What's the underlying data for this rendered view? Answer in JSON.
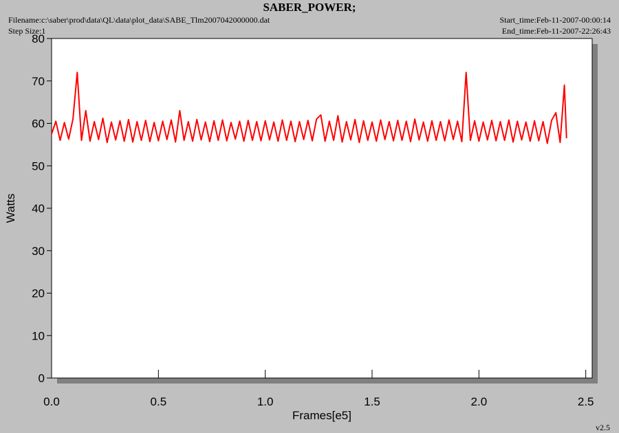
{
  "chart_data": {
    "type": "line",
    "title": "SABER_POWER;",
    "filename": "Filename:c:\\saber\\prod\\data\\QL\\data\\plot_data\\SABE_Tlm2007042000000.dat",
    "step_size": "Step Size:1",
    "start_time": "Start_time:Feb-11-2007-00:00:14",
    "end_time": "End_time:Feb-11-2007-22:26:43",
    "version": "v2.5",
    "x_label": "Frames[e5]",
    "y_label": "Watts",
    "xlim": [
      0,
      2.53
    ],
    "ylim": [
      0,
      80
    ],
    "xticks": [
      {
        "value": 0,
        "label": "0.0"
      },
      0.5,
      {
        "value": 1,
        "label": "1.0"
      },
      1.5,
      {
        "value": 2,
        "label": "2.0"
      },
      2.5
    ],
    "yticks": [
      0,
      10,
      20,
      30,
      40,
      50,
      60,
      70,
      80
    ],
    "x": [
      0,
      0.02,
      0.04,
      0.06,
      0.08,
      0.1,
      0.12,
      0.14,
      0.16,
      0.18,
      0.2,
      0.22,
      0.24,
      0.26,
      0.28,
      0.3,
      0.32,
      0.34,
      0.36,
      0.38,
      0.4,
      0.42,
      0.44,
      0.46,
      0.48,
      0.5,
      0.52,
      0.54,
      0.56,
      0.58,
      0.6,
      0.62,
      0.64,
      0.66,
      0.68,
      0.7,
      0.72,
      0.74,
      0.76,
      0.78,
      0.8,
      0.82,
      0.84,
      0.86,
      0.88,
      0.9,
      0.92,
      0.94,
      0.96,
      0.98,
      1,
      1.02,
      1.04,
      1.06,
      1.08,
      1.1,
      1.12,
      1.14,
      1.16,
      1.18,
      1.2,
      1.22,
      1.24,
      1.26,
      1.28,
      1.3,
      1.32,
      1.34,
      1.36,
      1.38,
      1.4,
      1.42,
      1.44,
      1.46,
      1.48,
      1.5,
      1.52,
      1.54,
      1.56,
      1.58,
      1.6,
      1.62,
      1.64,
      1.66,
      1.68,
      1.7,
      1.72,
      1.74,
      1.76,
      1.78,
      1.8,
      1.82,
      1.84,
      1.86,
      1.88,
      1.9,
      1.92,
      1.94,
      1.96,
      1.98,
      2,
      2.02,
      2.04,
      2.06,
      2.08,
      2.1,
      2.12,
      2.14,
      2.16,
      2.18,
      2.2,
      2.22,
      2.24,
      2.26,
      2.28,
      2.3,
      2.32,
      2.34,
      2.36,
      2.38,
      2.4,
      2.41
    ],
    "series": [
      {
        "name": "SABER_POWER",
        "color": "#ff0000",
        "values": [
          57.5,
          60.5,
          56.0,
          60.2,
          56.3,
          61.0,
          72,
          56.0,
          63,
          55.8,
          60.4,
          56.2,
          61.2,
          55.5,
          60.3,
          56.1,
          60.6,
          55.8,
          60.9,
          55.6,
          60.4,
          56.0,
          60.7,
          55.7,
          60.2,
          55.9,
          60.5,
          56.2,
          60.8,
          55.6,
          63.0,
          56.0,
          60.4,
          55.8,
          60.9,
          56.1,
          60.3,
          55.7,
          60.6,
          56.0,
          60.8,
          55.9,
          60.2,
          56.3,
          60.5,
          55.8,
          60.7,
          56.0,
          60.4,
          55.9,
          60.6,
          56.1,
          60.3,
          55.8,
          60.8,
          56.0,
          60.5,
          55.7,
          60.4,
          56.2,
          60.7,
          55.9,
          61.0,
          62.0,
          55.8,
          60.5,
          56.0,
          61.8,
          55.6,
          60.4,
          56.1,
          60.9,
          55.5,
          60.6,
          56.0,
          60.3,
          55.8,
          60.8,
          56.2,
          60.4,
          55.9,
          60.7,
          56.0,
          60.5,
          55.7,
          61.0,
          56.1,
          60.3,
          55.8,
          60.6,
          56.0,
          60.4,
          55.9,
          60.8,
          56.2,
          60.5,
          55.7,
          72.0,
          56.0,
          60.6,
          55.8,
          60.3,
          56.1,
          60.7,
          55.9,
          60.4,
          56.0,
          60.8,
          55.6,
          60.5,
          56.1,
          60.3,
          55.8,
          60.6,
          55.9,
          60.4,
          55.3,
          60.7,
          62.5,
          55.5,
          69.0,
          56.5
        ]
      }
    ]
  }
}
